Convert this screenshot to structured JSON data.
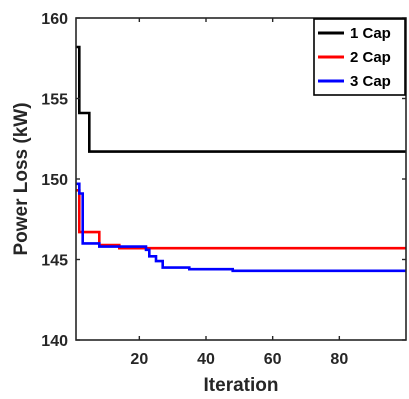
{
  "chart_data": {
    "type": "line",
    "title": "",
    "xlabel": "Iteration",
    "ylabel": "Power Loss (kW)",
    "xlim": [
      1,
      100
    ],
    "ylim": [
      140,
      160
    ],
    "xticks": [
      20,
      40,
      60,
      80
    ],
    "yticks": [
      140,
      145,
      150,
      155,
      160
    ],
    "x_tick_labels": [
      "20",
      "40",
      "60",
      "80"
    ],
    "y_tick_labels": [
      "140",
      "145",
      "150",
      "155",
      "160"
    ],
    "grid": false,
    "legend_position": "top-right",
    "series": [
      {
        "name": "1 Cap",
        "color": "#000000",
        "step": true,
        "points": [
          [
            1,
            158.2
          ],
          [
            2,
            154.1
          ],
          [
            4,
            154.1
          ],
          [
            5,
            151.7
          ],
          [
            100,
            151.7
          ]
        ]
      },
      {
        "name": "2 Cap",
        "color": "#ff0000",
        "step": true,
        "points": [
          [
            1,
            149.3
          ],
          [
            2,
            146.7
          ],
          [
            7,
            146.7
          ],
          [
            8,
            145.9
          ],
          [
            13,
            145.9
          ],
          [
            14,
            145.7
          ],
          [
            100,
            145.7
          ]
        ]
      },
      {
        "name": "3 Cap",
        "color": "#0000ff",
        "step": true,
        "points": [
          [
            1,
            149.7
          ],
          [
            2,
            149.1
          ],
          [
            3,
            146.0
          ],
          [
            7,
            146.0
          ],
          [
            8,
            145.8
          ],
          [
            21,
            145.8
          ],
          [
            22,
            145.6
          ],
          [
            23,
            145.2
          ],
          [
            25,
            144.9
          ],
          [
            27,
            144.5
          ],
          [
            35,
            144.4
          ],
          [
            48,
            144.3
          ],
          [
            100,
            144.3
          ]
        ]
      }
    ]
  }
}
